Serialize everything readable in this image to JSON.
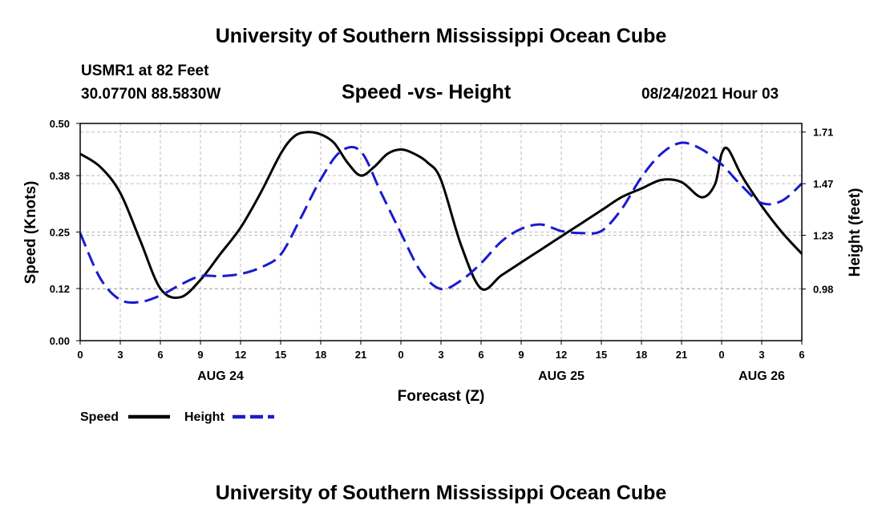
{
  "header": {
    "title": "University of Southern Mississippi Ocean Cube",
    "station": "USMR1 at 82 Feet",
    "coords": "30.0770N  88.5830W",
    "date": "08/24/2021 Hour 03"
  },
  "footer": {
    "title": "University of Southern Mississippi Ocean Cube"
  },
  "colors": {
    "speed": "#000000",
    "height": "#1a1ad0",
    "grid": "#bdbdbd"
  },
  "chart_data": {
    "type": "line",
    "title": "Speed -vs- Height",
    "xlabel": "Forecast (Z)",
    "ylabel": "Speed (Knots)",
    "y2label": "Height (feet)",
    "x_range": [
      0,
      54
    ],
    "ylim": [
      0,
      0.5
    ],
    "y2lim": [
      0.74,
      1.75
    ],
    "y_ticks": [
      "0.00",
      "0.12",
      "0.25",
      "0.38",
      "0.50"
    ],
    "y2_ticks": [
      "0.98",
      "1.23",
      "1.47",
      "1.71"
    ],
    "x_tick_labels": [
      "0",
      "3",
      "6",
      "9",
      "12",
      "15",
      "18",
      "21",
      "0",
      "3",
      "6",
      "9",
      "12",
      "15",
      "18",
      "21",
      "0",
      "3",
      "6"
    ],
    "day_labels": [
      {
        "text": "AUG 24",
        "x": 10.5
      },
      {
        "text": "AUG 25",
        "x": 36
      },
      {
        "text": "AUG 26",
        "x": 51
      }
    ],
    "series": [
      {
        "name": "Speed",
        "axis": "left",
        "style": "solid",
        "x": [
          0,
          1.5,
          3,
          4.5,
          6,
          7.5,
          9,
          10.5,
          12,
          13.5,
          15,
          16,
          17,
          18,
          19,
          20,
          21,
          22,
          23,
          24,
          25,
          26,
          27,
          28.5,
          30,
          31.5,
          33,
          34.5,
          36,
          37.5,
          39,
          40.5,
          42,
          43.5,
          45,
          46.5,
          47.5,
          48,
          48.5,
          49.5,
          51,
          52.5,
          54
        ],
        "values": [
          0.43,
          0.4,
          0.34,
          0.23,
          0.12,
          0.1,
          0.14,
          0.2,
          0.26,
          0.34,
          0.43,
          0.47,
          0.48,
          0.475,
          0.455,
          0.41,
          0.38,
          0.4,
          0.43,
          0.44,
          0.43,
          0.41,
          0.37,
          0.22,
          0.12,
          0.15,
          0.18,
          0.21,
          0.24,
          0.27,
          0.3,
          0.33,
          0.35,
          0.37,
          0.365,
          0.33,
          0.36,
          0.43,
          0.44,
          0.38,
          0.31,
          0.25,
          0.2
        ]
      },
      {
        "name": "Height",
        "axis": "right",
        "style": "dashed",
        "x": [
          0,
          1.5,
          3,
          4.5,
          6,
          7.5,
          9,
          10.5,
          12,
          13.5,
          15,
          16.5,
          18,
          19.5,
          21,
          22.5,
          24,
          25.5,
          27,
          28.5,
          30,
          31.5,
          33,
          34.5,
          36,
          37.5,
          39,
          40.5,
          42,
          43.5,
          45,
          46.5,
          48,
          49.5,
          51,
          52.5,
          54
        ],
        "values": [
          1.24,
          1.03,
          0.93,
          0.92,
          0.95,
          1.0,
          1.04,
          1.04,
          1.05,
          1.08,
          1.14,
          1.31,
          1.49,
          1.62,
          1.62,
          1.43,
          1.24,
          1.06,
          0.98,
          1.02,
          1.1,
          1.2,
          1.26,
          1.28,
          1.25,
          1.24,
          1.25,
          1.35,
          1.5,
          1.61,
          1.66,
          1.63,
          1.56,
          1.46,
          1.38,
          1.39,
          1.47
        ]
      }
    ],
    "legend": [
      {
        "label": "Speed",
        "style": "solid"
      },
      {
        "label": "Height",
        "style": "dashed"
      }
    ]
  }
}
